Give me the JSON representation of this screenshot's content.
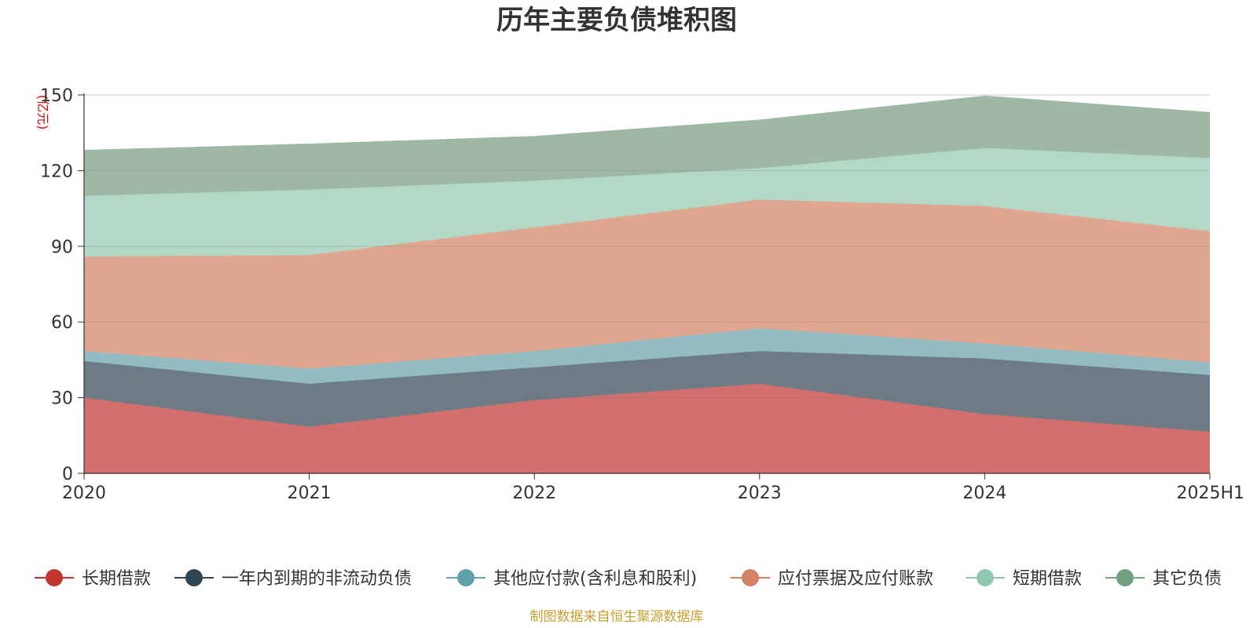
{
  "chart_data": {
    "type": "area",
    "stacked": true,
    "title": "历年主要负债堆积图",
    "unit_label": "(亿元)",
    "categories": [
      "2020",
      "2021",
      "2022",
      "2023",
      "2024",
      "2025H1"
    ],
    "ylim": [
      0,
      150
    ],
    "yticks": [
      "0",
      "30",
      "60",
      "90",
      "120",
      "150"
    ],
    "grid": true,
    "legend_position": "bottom",
    "series": [
      {
        "name": "长期借款",
        "values": [
          30,
          18.5,
          29,
          35.5,
          23.5,
          16.5
        ],
        "color": "#c23531",
        "fill": "#d3706e"
      },
      {
        "name": "一年内到期的非流动负债",
        "values": [
          14.5,
          17,
          13,
          13,
          22,
          22.5
        ],
        "color": "#2f4554",
        "fill": "#6c7b86"
      },
      {
        "name": "其他应付款(含利息和股利)",
        "values": [
          4,
          6,
          6.5,
          9,
          6,
          5
        ],
        "color": "#61a0a8",
        "fill": "#92bcc1"
      },
      {
        "name": "应付票据及应付账款",
        "values": [
          37.5,
          45,
          49,
          51,
          54.5,
          52
        ],
        "color": "#d48265",
        "fill": "#e0a690"
      },
      {
        "name": "短期借款",
        "values": [
          24,
          26,
          18.5,
          12.5,
          23,
          29
        ],
        "color": "#91c7ae",
        "fill": "#b2d8c6"
      },
      {
        "name": "其它负债",
        "values": [
          18,
          18,
          17.5,
          19,
          20.5,
          18
        ],
        "color": "#749f83",
        "fill": "#9eb8a5"
      }
    ]
  },
  "source": "制图数据来自恒生聚源数据库"
}
